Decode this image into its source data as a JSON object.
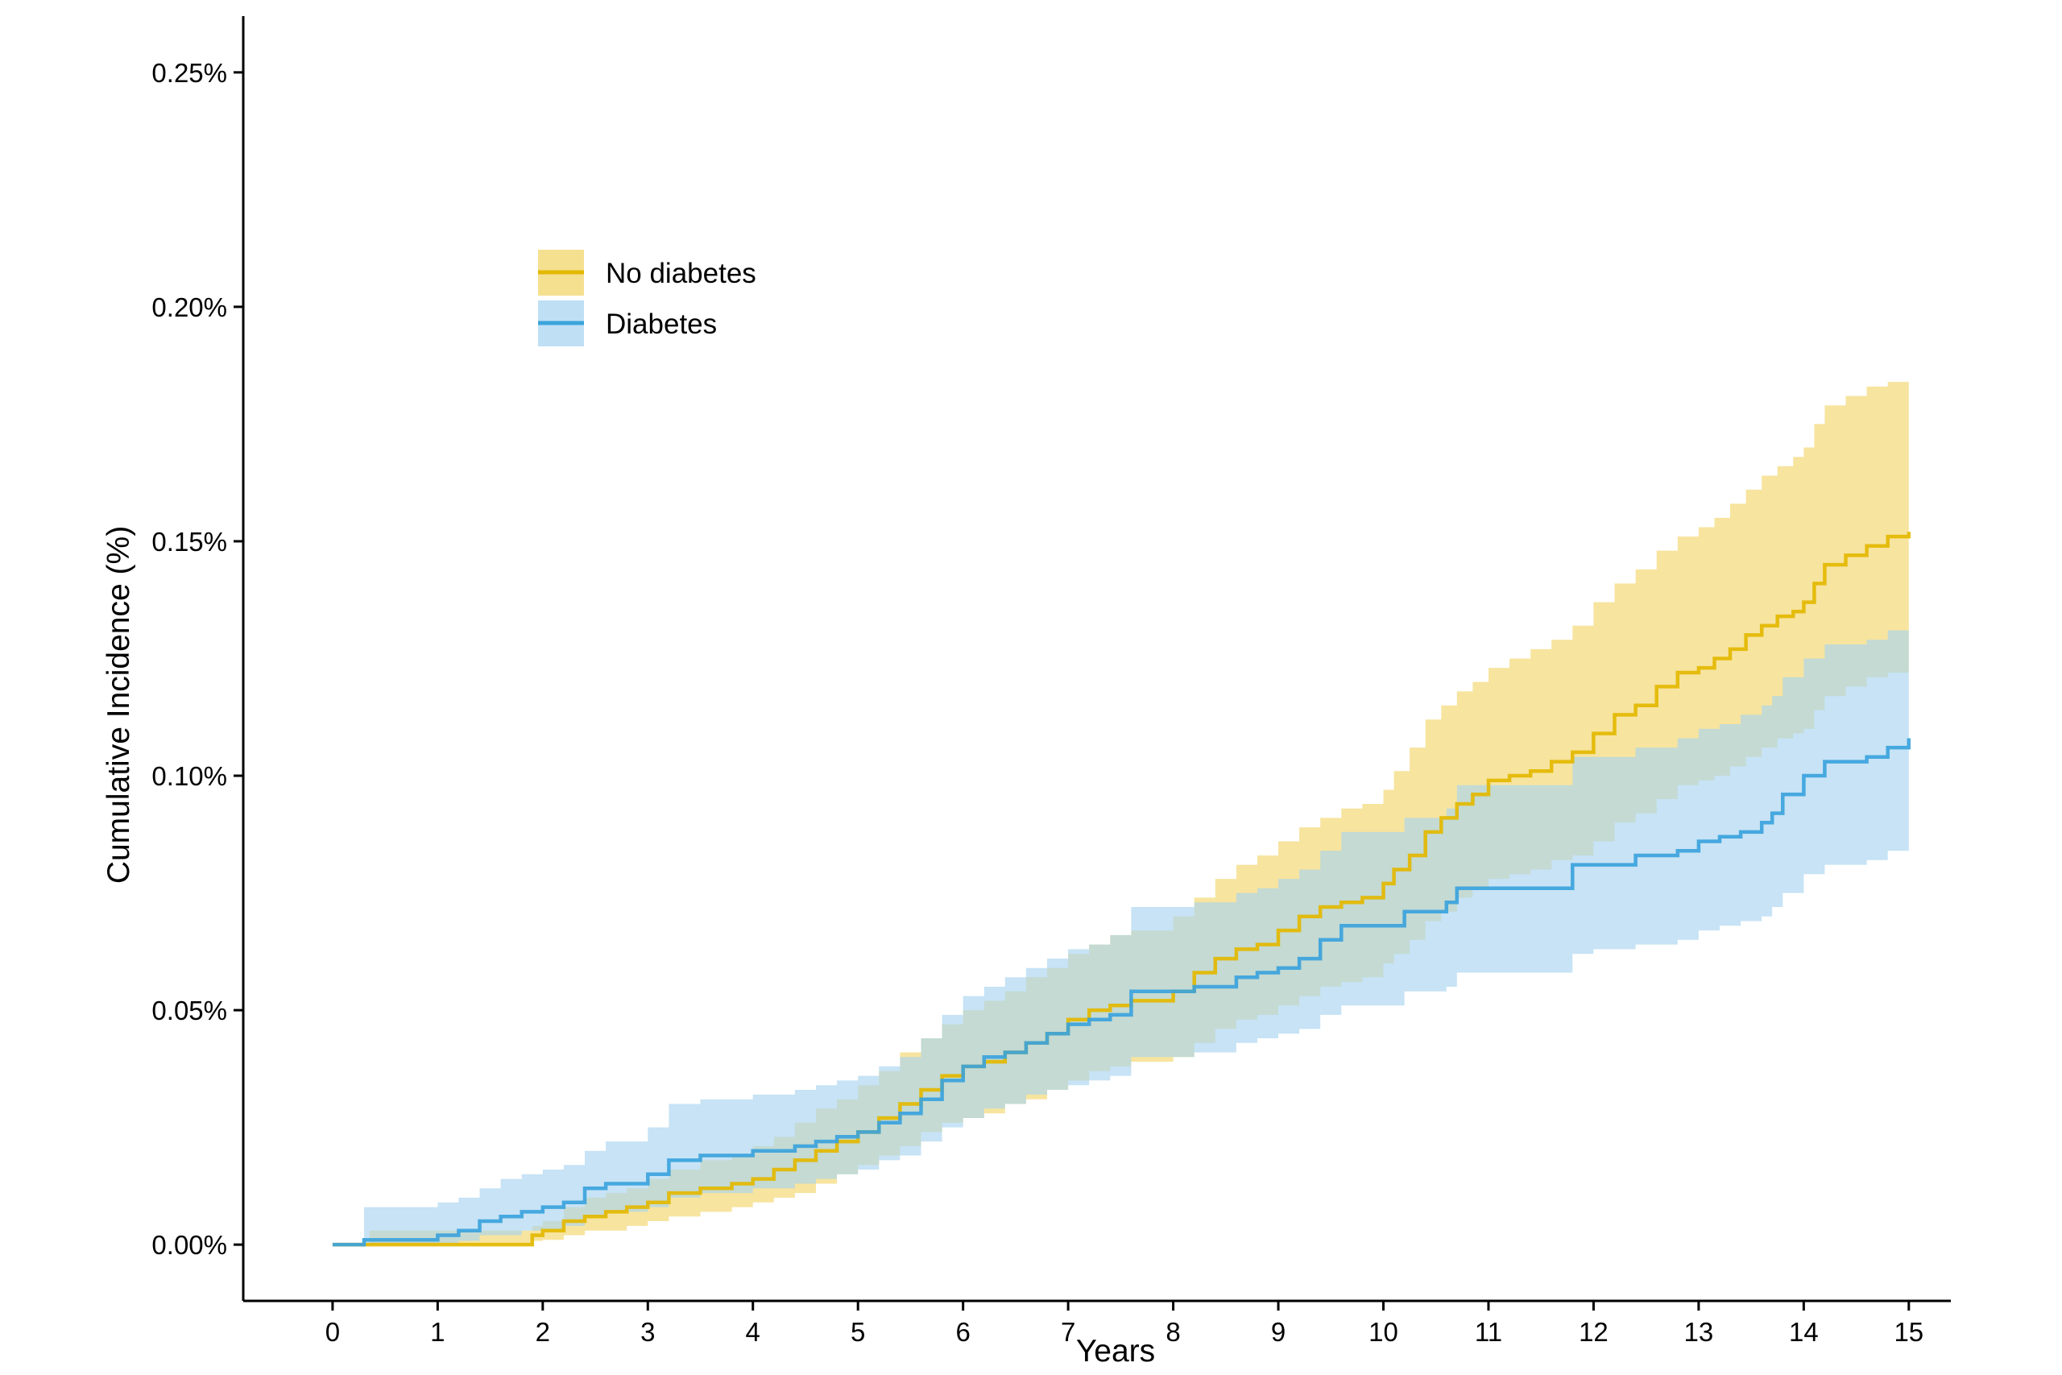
{
  "chart_data": {
    "type": "line",
    "title": "",
    "xlabel": "Years",
    "ylabel": "Cumulative Incidence (%)",
    "xlim": [
      -0.85,
      15.4
    ],
    "ylim": [
      -0.012,
      0.262
    ],
    "x_ticks": [
      0,
      1,
      2,
      3,
      4,
      5,
      6,
      7,
      8,
      9,
      10,
      11,
      12,
      13,
      14,
      15
    ],
    "x_tick_labels": [
      "0",
      "1",
      "2",
      "3",
      "4",
      "5",
      "6",
      "7",
      "8",
      "9",
      "10",
      "11",
      "12",
      "13",
      "14",
      "15"
    ],
    "y_ticks": [
      0.0,
      0.05,
      0.1,
      0.15,
      0.2,
      0.25
    ],
    "y_tick_labels": [
      "0.00%",
      "0.05%",
      "0.10%",
      "0.15%",
      "0.20%",
      "0.25%"
    ],
    "grid": false,
    "legend_position": "top-left",
    "step": true,
    "series": [
      {
        "name": "No diabetes",
        "color": "#E3B900",
        "band_color": "#F2D66B",
        "x": [
          0,
          0.35,
          1.8,
          1.9,
          2.0,
          2.2,
          2.4,
          2.6,
          2.8,
          3.0,
          3.2,
          3.5,
          3.8,
          4.0,
          4.2,
          4.4,
          4.6,
          4.8,
          5.0,
          5.2,
          5.4,
          5.6,
          5.8,
          6.0,
          6.2,
          6.4,
          6.6,
          6.8,
          7.0,
          7.2,
          7.4,
          7.6,
          7.8,
          8.0,
          8.2,
          8.4,
          8.6,
          8.8,
          9.0,
          9.2,
          9.4,
          9.6,
          9.8,
          10.0,
          10.1,
          10.25,
          10.4,
          10.55,
          10.7,
          10.85,
          11.0,
          11.2,
          11.4,
          11.6,
          11.8,
          12.0,
          12.2,
          12.4,
          12.6,
          12.8,
          13.0,
          13.15,
          13.3,
          13.45,
          13.6,
          13.75,
          13.9,
          14.0,
          14.1,
          14.2,
          14.4,
          14.6,
          14.8,
          15.0
        ],
        "values": [
          0.0,
          0.0,
          0.0,
          0.002,
          0.003,
          0.005,
          0.006,
          0.007,
          0.008,
          0.009,
          0.011,
          0.012,
          0.013,
          0.014,
          0.016,
          0.018,
          0.02,
          0.022,
          0.024,
          0.027,
          0.03,
          0.033,
          0.036,
          0.038,
          0.039,
          0.041,
          0.043,
          0.045,
          0.048,
          0.05,
          0.051,
          0.052,
          0.052,
          0.054,
          0.058,
          0.061,
          0.063,
          0.064,
          0.067,
          0.07,
          0.072,
          0.073,
          0.074,
          0.077,
          0.08,
          0.083,
          0.088,
          0.091,
          0.094,
          0.096,
          0.099,
          0.1,
          0.101,
          0.103,
          0.105,
          0.109,
          0.113,
          0.115,
          0.119,
          0.122,
          0.123,
          0.125,
          0.127,
          0.13,
          0.132,
          0.134,
          0.135,
          0.137,
          0.141,
          0.145,
          0.147,
          0.149,
          0.151,
          0.152
        ],
        "lower": [
          0.0,
          0.0,
          0.0,
          0.0008,
          0.001,
          0.002,
          0.003,
          0.003,
          0.004,
          0.005,
          0.006,
          0.007,
          0.008,
          0.009,
          0.01,
          0.011,
          0.013,
          0.015,
          0.017,
          0.019,
          0.021,
          0.024,
          0.026,
          0.027,
          0.028,
          0.03,
          0.031,
          0.033,
          0.035,
          0.037,
          0.038,
          0.039,
          0.039,
          0.04,
          0.043,
          0.046,
          0.048,
          0.049,
          0.051,
          0.053,
          0.055,
          0.056,
          0.057,
          0.06,
          0.062,
          0.065,
          0.069,
          0.071,
          0.074,
          0.076,
          0.078,
          0.079,
          0.08,
          0.082,
          0.083,
          0.086,
          0.09,
          0.092,
          0.095,
          0.098,
          0.099,
          0.1,
          0.102,
          0.104,
          0.106,
          0.108,
          0.109,
          0.11,
          0.114,
          0.117,
          0.119,
          0.121,
          0.122,
          0.123
        ],
        "upper": [
          0.0,
          0.003,
          0.003,
          0.004,
          0.005,
          0.008,
          0.01,
          0.011,
          0.012,
          0.014,
          0.016,
          0.018,
          0.019,
          0.021,
          0.023,
          0.026,
          0.029,
          0.031,
          0.034,
          0.037,
          0.041,
          0.044,
          0.047,
          0.05,
          0.052,
          0.054,
          0.057,
          0.059,
          0.062,
          0.064,
          0.066,
          0.067,
          0.067,
          0.07,
          0.074,
          0.078,
          0.081,
          0.083,
          0.086,
          0.089,
          0.091,
          0.093,
          0.094,
          0.097,
          0.101,
          0.106,
          0.112,
          0.115,
          0.118,
          0.12,
          0.123,
          0.125,
          0.127,
          0.129,
          0.132,
          0.137,
          0.141,
          0.144,
          0.148,
          0.151,
          0.153,
          0.155,
          0.158,
          0.161,
          0.164,
          0.166,
          0.168,
          0.17,
          0.175,
          0.179,
          0.181,
          0.183,
          0.184,
          0.184
        ]
      },
      {
        "name": "Diabetes",
        "color": "#3BA3DC",
        "band_color": "#A9D4F0",
        "x": [
          0,
          0.3,
          0.6,
          1.0,
          1.2,
          1.4,
          1.6,
          1.8,
          2.0,
          2.2,
          2.4,
          2.6,
          3.0,
          3.2,
          3.5,
          4.0,
          4.4,
          4.6,
          4.8,
          5.0,
          5.2,
          5.4,
          5.6,
          5.8,
          6.0,
          6.2,
          6.4,
          6.6,
          6.8,
          7.0,
          7.2,
          7.4,
          7.6,
          8.0,
          8.2,
          8.4,
          8.6,
          8.8,
          9.0,
          9.2,
          9.4,
          9.6,
          10.0,
          10.2,
          10.4,
          10.6,
          10.7,
          11.0,
          11.4,
          11.8,
          12.0,
          12.4,
          12.8,
          13.0,
          13.2,
          13.4,
          13.6,
          13.7,
          13.8,
          14.0,
          14.2,
          14.6,
          14.8,
          15.0
        ],
        "values": [
          0.0,
          0.001,
          0.001,
          0.002,
          0.003,
          0.005,
          0.006,
          0.007,
          0.008,
          0.009,
          0.012,
          0.013,
          0.015,
          0.018,
          0.019,
          0.02,
          0.021,
          0.022,
          0.023,
          0.024,
          0.026,
          0.028,
          0.031,
          0.035,
          0.038,
          0.04,
          0.041,
          0.043,
          0.045,
          0.047,
          0.048,
          0.049,
          0.054,
          0.054,
          0.055,
          0.055,
          0.057,
          0.058,
          0.059,
          0.061,
          0.065,
          0.068,
          0.068,
          0.071,
          0.071,
          0.073,
          0.076,
          0.076,
          0.076,
          0.081,
          0.081,
          0.083,
          0.084,
          0.086,
          0.087,
          0.088,
          0.09,
          0.092,
          0.096,
          0.1,
          0.103,
          0.104,
          0.106,
          0.108
        ],
        "lower": [
          0.0,
          0.0,
          0.0,
          0.0003,
          0.0008,
          0.002,
          0.002,
          0.003,
          0.003,
          0.004,
          0.006,
          0.007,
          0.008,
          0.01,
          0.011,
          0.012,
          0.013,
          0.014,
          0.015,
          0.016,
          0.018,
          0.019,
          0.022,
          0.025,
          0.027,
          0.029,
          0.03,
          0.032,
          0.033,
          0.034,
          0.035,
          0.036,
          0.04,
          0.04,
          0.041,
          0.041,
          0.043,
          0.044,
          0.045,
          0.046,
          0.049,
          0.051,
          0.051,
          0.054,
          0.054,
          0.055,
          0.058,
          0.058,
          0.058,
          0.062,
          0.063,
          0.064,
          0.065,
          0.067,
          0.068,
          0.069,
          0.07,
          0.072,
          0.075,
          0.079,
          0.081,
          0.082,
          0.084,
          0.086
        ],
        "upper": [
          0.0,
          0.008,
          0.008,
          0.009,
          0.01,
          0.012,
          0.014,
          0.015,
          0.016,
          0.017,
          0.02,
          0.022,
          0.025,
          0.03,
          0.031,
          0.032,
          0.033,
          0.034,
          0.035,
          0.036,
          0.038,
          0.04,
          0.044,
          0.049,
          0.053,
          0.055,
          0.057,
          0.059,
          0.061,
          0.063,
          0.064,
          0.066,
          0.072,
          0.072,
          0.073,
          0.073,
          0.075,
          0.076,
          0.078,
          0.08,
          0.084,
          0.088,
          0.088,
          0.091,
          0.091,
          0.093,
          0.098,
          0.098,
          0.098,
          0.104,
          0.104,
          0.106,
          0.108,
          0.11,
          0.111,
          0.113,
          0.115,
          0.117,
          0.121,
          0.125,
          0.128,
          0.129,
          0.131,
          0.133
        ]
      }
    ]
  }
}
